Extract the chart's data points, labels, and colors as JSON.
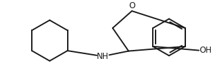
{
  "bg_color": "#ffffff",
  "line_color": "#1a1a1a",
  "line_width": 1.4,
  "text_color": "#1a1a1a",
  "font_size": 8.5,
  "o_label": "O",
  "nh_label": "NH",
  "oh_label": "OH",
  "figw": 3.24,
  "figh": 1.11,
  "dpi": 100,
  "xlim": [
    0,
    324
  ],
  "ylim": [
    0,
    111
  ]
}
